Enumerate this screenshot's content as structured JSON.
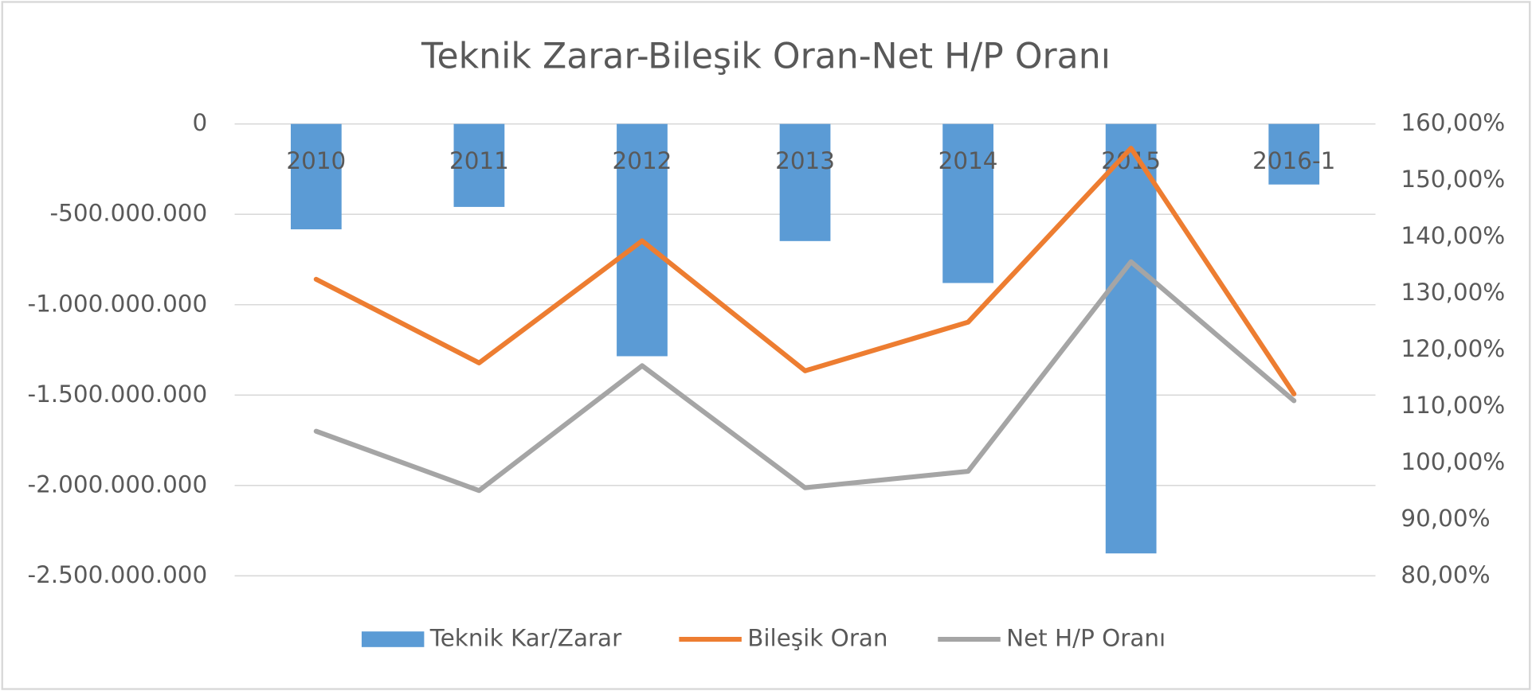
{
  "chart_data": {
    "type": "bar-line",
    "title": "Teknik Zarar-Bileşik Oran-Net H/P Oranı",
    "categories": [
      "2010",
      "2011",
      "2012",
      "2013",
      "2014",
      "2015",
      "2016-1"
    ],
    "series": [
      {
        "name": "Teknik Kar/Zarar",
        "type": "bar",
        "axis": "y",
        "color": "#5b9bd5",
        "values": [
          -583000000,
          -459000000,
          -1285000000,
          -648000000,
          -880000000,
          -2376000000,
          -335000000
        ]
      },
      {
        "name": "Bileşik Oran",
        "type": "line",
        "axis": "y2",
        "color": "#ed7d31",
        "values": [
          132.5,
          117.7,
          139.3,
          116.3,
          124.9,
          155.7,
          112.2
        ]
      },
      {
        "name": "Net H/P Oranı",
        "type": "line",
        "axis": "y2",
        "color": "#a5a5a5",
        "values": [
          105.6,
          95.1,
          117.2,
          95.6,
          98.5,
          135.6,
          111.0
        ]
      }
    ],
    "ylim": [
      -2500000000,
      0
    ],
    "yticks": [
      0,
      {
        "value": -500000000,
        "label": "-500.000.000"
      },
      {
        "value": -1000000000,
        "label": "-1.000.000.000"
      },
      {
        "value": -1500000000,
        "label": "-1.500.000.000"
      },
      {
        "value": -2000000000,
        "label": "-2.000.000.000"
      },
      {
        "value": -2500000000,
        "label": "-2.500.000.000"
      }
    ],
    "y2lim": [
      80,
      160
    ],
    "y2ticks": [
      {
        "value": 160,
        "label": "160,00%"
      },
      {
        "value": 150,
        "label": "150,00%"
      },
      {
        "value": 140,
        "label": "140,00%"
      },
      {
        "value": 130,
        "label": "130,00%"
      },
      {
        "value": 120,
        "label": "120,00%"
      },
      {
        "value": 110,
        "label": "110,00%"
      },
      {
        "value": 100,
        "label": "100,00%"
      },
      {
        "value": 90,
        "label": "90,00%"
      },
      {
        "value": 80,
        "label": "80,00%"
      }
    ],
    "grid": true,
    "legend": "bottom"
  }
}
